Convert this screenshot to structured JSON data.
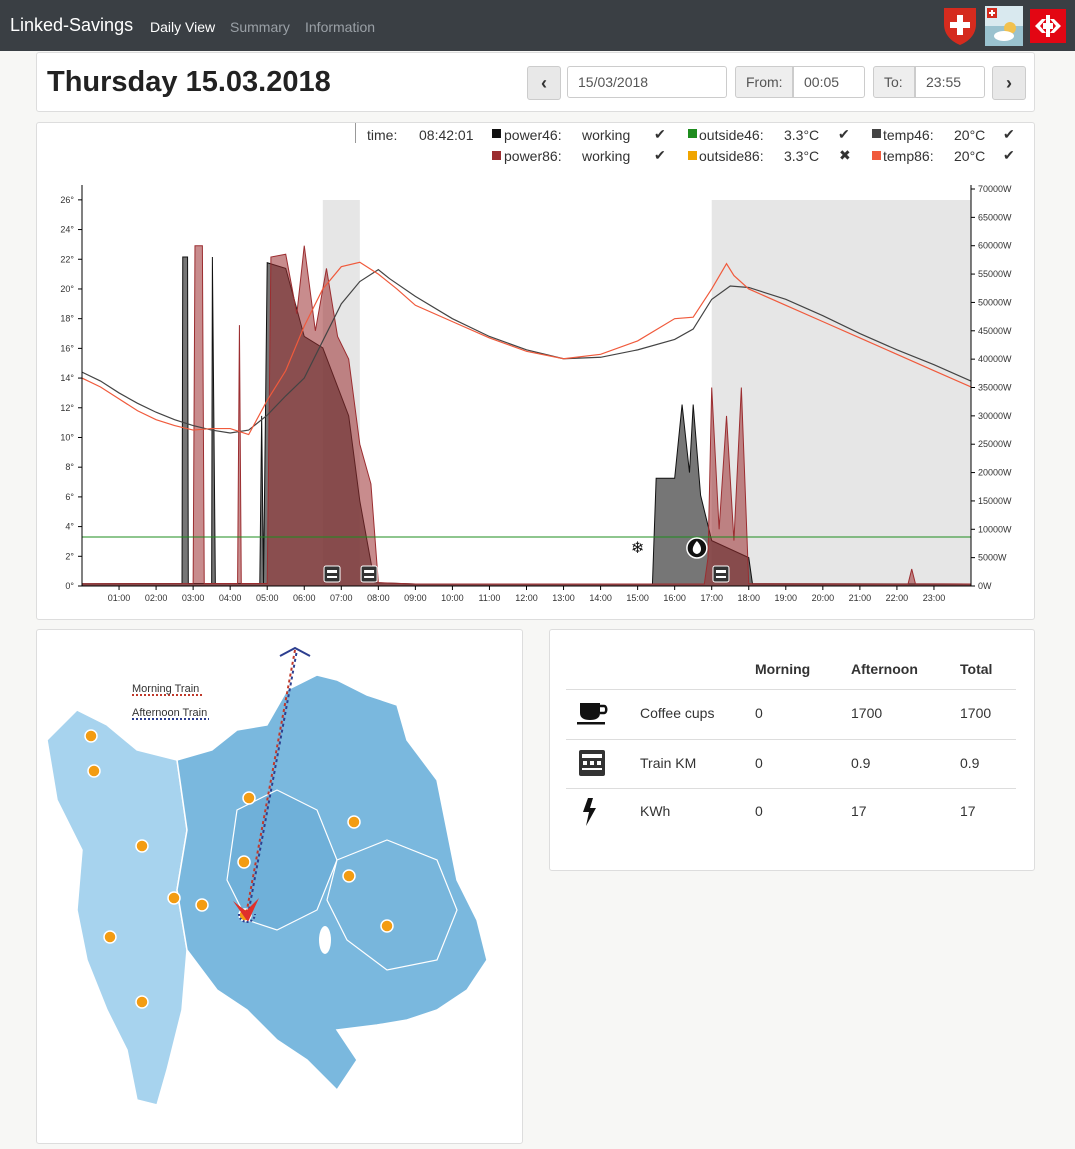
{
  "nav": {
    "brand": "Linked-Savings",
    "items": [
      {
        "label": "Daily View",
        "active": true
      },
      {
        "label": "Summary",
        "active": false
      },
      {
        "label": "Information",
        "active": false
      }
    ]
  },
  "header": {
    "title": "Thursday 15.03.2018",
    "date_value": "15/03/2018",
    "from_label": "From:",
    "from_value": "00:05",
    "to_label": "To:",
    "to_value": "23:55"
  },
  "legend": {
    "time_label": "time:",
    "time_value": "08:42:01",
    "items": [
      {
        "name": "power46:",
        "value": "working",
        "status": "✔",
        "color": "#111111"
      },
      {
        "name": "power86:",
        "value": "working",
        "status": "✔",
        "color": "#9b2d30"
      },
      {
        "name": "outside46:",
        "value": "3.3°C",
        "status": "✔",
        "color": "#1e8c1e"
      },
      {
        "name": "outside86:",
        "value": "3.3°C",
        "status": "✖",
        "color": "#f0a500"
      },
      {
        "name": "temp46:",
        "value": "20°C",
        "status": "✔",
        "color": "#444444"
      },
      {
        "name": "temp86:",
        "value": "20°C",
        "status": "✔",
        "color": "#f05a3c"
      }
    ]
  },
  "chart_data": {
    "type": "line",
    "x_ticks": [
      "01:00",
      "02:00",
      "03:00",
      "04:00",
      "05:00",
      "06:00",
      "07:00",
      "08:00",
      "09:00",
      "10:00",
      "11:00",
      "12:00",
      "13:00",
      "14:00",
      "15:00",
      "16:00",
      "17:00",
      "18:00",
      "19:00",
      "20:00",
      "21:00",
      "22:00",
      "23:00"
    ],
    "y_left_ticks": [
      "0°",
      "2°",
      "4°",
      "6°",
      "8°",
      "10°",
      "12°",
      "14°",
      "16°",
      "18°",
      "20°",
      "22°",
      "24°",
      "26°"
    ],
    "y_right_ticks": [
      "0W",
      "5000W",
      "10000W",
      "15000W",
      "20000W",
      "25000W",
      "30000W",
      "35000W",
      "40000W",
      "45000W",
      "50000W",
      "55000W",
      "60000W",
      "65000W",
      "70000W"
    ],
    "ylim_left": [
      0,
      27
    ],
    "ylim_right": [
      0,
      70000
    ],
    "shaded_ranges": [
      [
        6.5,
        7.5
      ],
      [
        17.0,
        24.0
      ]
    ],
    "outside_temperature": 3.3,
    "series": [
      {
        "name": "temp46",
        "color": "#444444",
        "points": [
          [
            0,
            14.4
          ],
          [
            0.5,
            13.8
          ],
          [
            1,
            13.0
          ],
          [
            1.5,
            12.3
          ],
          [
            2,
            11.7
          ],
          [
            2.5,
            11.2
          ],
          [
            3,
            10.8
          ],
          [
            3.5,
            10.5
          ],
          [
            4,
            10.3
          ],
          [
            4.5,
            10.5
          ],
          [
            5,
            11.5
          ],
          [
            5.5,
            12.8
          ],
          [
            6,
            14.0
          ],
          [
            6.5,
            16.5
          ],
          [
            7,
            19.0
          ],
          [
            7.5,
            20.5
          ],
          [
            8,
            21.3
          ],
          [
            8.3,
            20.7
          ],
          [
            9,
            19.5
          ],
          [
            10,
            18.0
          ],
          [
            11,
            16.8
          ],
          [
            12,
            15.9
          ],
          [
            13,
            15.3
          ],
          [
            14,
            15.4
          ],
          [
            15,
            15.9
          ],
          [
            16,
            16.6
          ],
          [
            16.5,
            17.3
          ],
          [
            17,
            19.3
          ],
          [
            17.5,
            20.2
          ],
          [
            18,
            20.1
          ],
          [
            19,
            19.3
          ],
          [
            20,
            18.2
          ],
          [
            21,
            17.0
          ],
          [
            22,
            15.9
          ],
          [
            23,
            14.9
          ],
          [
            24,
            13.8
          ]
        ]
      },
      {
        "name": "temp86",
        "color": "#f05a3c",
        "points": [
          [
            0,
            14.0
          ],
          [
            0.5,
            13.4
          ],
          [
            1,
            12.6
          ],
          [
            1.5,
            11.8
          ],
          [
            2,
            11.2
          ],
          [
            2.5,
            10.8
          ],
          [
            3,
            10.5
          ],
          [
            3.5,
            10.6
          ],
          [
            4,
            10.6
          ],
          [
            4.5,
            10.2
          ],
          [
            5,
            12.5
          ],
          [
            5.5,
            14.5
          ],
          [
            6,
            17.5
          ],
          [
            6.5,
            20.0
          ],
          [
            7,
            21.5
          ],
          [
            7.5,
            21.8
          ],
          [
            8,
            21.0
          ],
          [
            8.5,
            20.0
          ],
          [
            9,
            18.9
          ],
          [
            10,
            17.8
          ],
          [
            11,
            16.7
          ],
          [
            12,
            15.8
          ],
          [
            13,
            15.3
          ],
          [
            14,
            15.6
          ],
          [
            15,
            16.5
          ],
          [
            16,
            18.0
          ],
          [
            16.5,
            18.1
          ],
          [
            17,
            20.0
          ],
          [
            17.4,
            21.7
          ],
          [
            17.6,
            20.9
          ],
          [
            18,
            20.0
          ],
          [
            19,
            18.9
          ],
          [
            20,
            17.8
          ],
          [
            21,
            16.7
          ],
          [
            22,
            15.6
          ],
          [
            23,
            14.5
          ],
          [
            24,
            13.4
          ]
        ]
      },
      {
        "name": "power46",
        "color": "#111111",
        "points": [
          [
            0,
            400
          ],
          [
            2.7,
            450
          ],
          [
            2.72,
            58000
          ],
          [
            2.85,
            58000
          ],
          [
            2.87,
            450
          ],
          [
            3.5,
            450
          ],
          [
            3.52,
            58000
          ],
          [
            3.6,
            450
          ],
          [
            4.8,
            450
          ],
          [
            4.85,
            30000
          ],
          [
            4.9,
            450
          ],
          [
            5.0,
            57000
          ],
          [
            5.5,
            56000
          ],
          [
            6.0,
            44000
          ],
          [
            6.5,
            42000
          ],
          [
            7.2,
            30000
          ],
          [
            7.5,
            15000
          ],
          [
            7.9,
            600
          ],
          [
            9,
            350
          ],
          [
            15.4,
            350
          ],
          [
            15.5,
            19000
          ],
          [
            16.0,
            19000
          ],
          [
            16.2,
            32000
          ],
          [
            16.4,
            20000
          ],
          [
            16.5,
            32000
          ],
          [
            16.7,
            16000
          ],
          [
            17,
            8000
          ],
          [
            18,
            5000
          ],
          [
            18.1,
            400
          ],
          [
            24,
            350
          ]
        ]
      },
      {
        "name": "power86",
        "color": "#9b2d30",
        "points": [
          [
            0,
            400
          ],
          [
            3.0,
            450
          ],
          [
            3.05,
            60000
          ],
          [
            3.25,
            60000
          ],
          [
            3.3,
            450
          ],
          [
            4.2,
            450
          ],
          [
            4.25,
            46000
          ],
          [
            4.3,
            450
          ],
          [
            5.0,
            450
          ],
          [
            5.1,
            58000
          ],
          [
            5.5,
            58500
          ],
          [
            5.8,
            48000
          ],
          [
            6.0,
            60000
          ],
          [
            6.3,
            45000
          ],
          [
            6.6,
            56000
          ],
          [
            6.9,
            44000
          ],
          [
            7.2,
            40000
          ],
          [
            7.5,
            25000
          ],
          [
            7.8,
            18000
          ],
          [
            8.0,
            600
          ],
          [
            9,
            350
          ],
          [
            16.8,
            350
          ],
          [
            16.9,
            5000
          ],
          [
            17.0,
            35000
          ],
          [
            17.2,
            10000
          ],
          [
            17.4,
            30000
          ],
          [
            17.6,
            8000
          ],
          [
            17.8,
            35000
          ],
          [
            18.0,
            400
          ],
          [
            22.3,
            350
          ],
          [
            22.4,
            3000
          ],
          [
            22.5,
            400
          ],
          [
            24,
            350
          ]
        ]
      }
    ],
    "markers": [
      {
        "icon": "snowflake-icon",
        "time": 15.0,
        "glyph": "❄"
      },
      {
        "icon": "flame-icon",
        "time": 16.6,
        "glyph": "🔥"
      },
      {
        "icon": "train-icon",
        "time": 6.75,
        "glyph": "🚆"
      },
      {
        "icon": "train-icon",
        "time": 7.75,
        "glyph": "🚆"
      },
      {
        "icon": "train-icon",
        "time": 17.25,
        "glyph": "🚆"
      }
    ]
  },
  "map": {
    "morning_label": "Morning Train",
    "afternoon_label": "Afternoon Train",
    "morning_color": "#c0392b",
    "afternoon_color": "#2c3e8f"
  },
  "table": {
    "headers": [
      "Morning",
      "Afternoon",
      "Total"
    ],
    "rows": [
      {
        "icon": "coffee-cup-icon",
        "label": "Coffee cups",
        "morning": "0",
        "afternoon": "1700",
        "total": "1700"
      },
      {
        "icon": "train-icon",
        "label": "Train KM",
        "morning": "0",
        "afternoon": "0.9",
        "total": "0.9"
      },
      {
        "icon": "lightning-icon",
        "label": "KWh",
        "morning": "0",
        "afternoon": "17",
        "total": "17"
      }
    ]
  }
}
